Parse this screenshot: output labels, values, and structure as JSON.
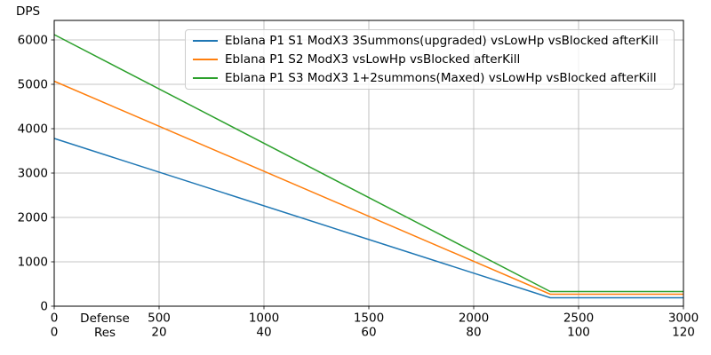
{
  "chart_data": {
    "type": "line",
    "title": "",
    "ylabel": "DPS",
    "xlabel_lines": [
      "Defense",
      "Res"
    ],
    "xlim": [
      0,
      3000
    ],
    "ylim": [
      0,
      6440
    ],
    "x_ticks_defense": [
      0,
      500,
      1000,
      1500,
      2000,
      2500,
      3000
    ],
    "x_ticks_res": [
      0,
      20,
      40,
      60,
      80,
      100,
      120
    ],
    "y_ticks": [
      0,
      1000,
      2000,
      3000,
      4000,
      5000,
      6000
    ],
    "grid": true,
    "legend_position": "upper right",
    "series": [
      {
        "name": "Eblana P1 S1 ModX3 3Summons(upgraded) vsLowHp vsBlocked afterKill",
        "color": "#1f77b4",
        "points": [
          [
            0,
            3780
          ],
          [
            2365,
            190
          ],
          [
            3000,
            190
          ]
        ]
      },
      {
        "name": "Eblana P1 S2 ModX3 vsLowHp vsBlocked afterKill",
        "color": "#ff7f0e",
        "points": [
          [
            0,
            5070
          ],
          [
            2365,
            270
          ],
          [
            3000,
            270
          ]
        ]
      },
      {
        "name": "Eblana P1 S3 ModX3 1+2summons(Maxed) vsLowHp vsBlocked afterKill",
        "color": "#2ca02c",
        "points": [
          [
            0,
            6120
          ],
          [
            2365,
            330
          ],
          [
            3000,
            330
          ]
        ]
      }
    ],
    "colors": {
      "grid": "#b0b0b0",
      "spine": "#000000",
      "tick_label": "#000000",
      "background": "#ffffff"
    }
  }
}
